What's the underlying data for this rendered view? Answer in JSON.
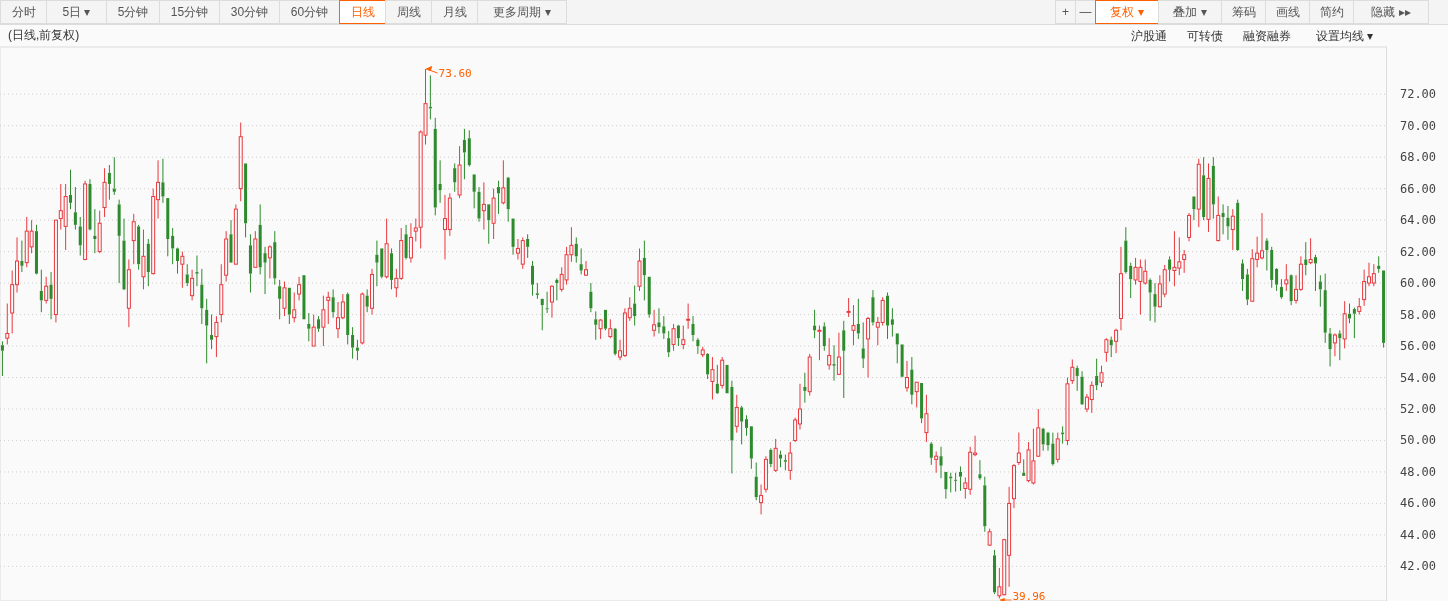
{
  "chart_data": {
    "type": "candlestick",
    "title": "(日线,前复权)",
    "annotations": [
      "分时",
      "5日 ▾",
      "5分钟",
      "15分钟",
      "30分钟",
      "60分钟",
      "日线",
      "周线",
      "月线",
      "更多周期 ▾",
      "+",
      "—",
      "复权 ▾",
      "叠加 ▾",
      "筹码",
      "画线",
      "简约",
      "隐藏 ▸▸",
      "沪股通",
      "可转债",
      "融资融券",
      "设置均线 ▾",
      "73.60",
      "39.96"
    ],
    "ylim": [
      39.8,
      75.0
    ],
    "yticks": [
      {
        "value": 42,
        "label": "42.00"
      },
      {
        "value": 44,
        "label": "44.00"
      },
      {
        "value": 46,
        "label": "46.00"
      },
      {
        "value": 48,
        "label": "48.00"
      },
      {
        "value": 50,
        "label": "50.00"
      },
      {
        "value": 52,
        "label": "52.00"
      },
      {
        "value": 54,
        "label": "54.00"
      },
      {
        "value": 56,
        "label": "56.00"
      },
      {
        "value": 58,
        "label": "58.00"
      },
      {
        "value": 60,
        "label": "60.00"
      },
      {
        "value": 62,
        "label": "62.00"
      },
      {
        "value": 64,
        "label": "64.00"
      },
      {
        "value": 66,
        "label": "66.00"
      },
      {
        "value": 68,
        "label": "68.00"
      },
      {
        "value": 70,
        "label": "70.00"
      },
      {
        "value": 72,
        "label": "72.00"
      }
    ],
    "grid": "y",
    "tick_labels": "y",
    "categories": [
      null,
      null,
      null,
      null,
      null,
      null,
      null,
      null,
      null,
      null,
      null,
      null,
      null,
      null,
      null,
      null,
      null,
      null,
      null,
      null,
      null,
      null,
      null,
      null,
      null,
      null,
      null,
      null,
      null,
      null,
      null,
      null,
      null,
      null,
      null,
      null,
      null,
      null,
      null,
      null,
      null,
      null,
      null,
      null,
      null,
      null,
      null,
      null,
      null,
      null,
      null,
      null,
      null,
      null,
      null,
      null,
      null,
      null,
      null,
      null,
      null,
      null,
      null,
      null,
      null,
      null,
      null,
      null,
      null,
      null,
      null,
      null,
      null,
      null,
      null,
      null,
      null,
      null,
      null,
      null,
      null,
      null,
      null,
      null,
      null,
      null,
      null,
      null,
      null,
      null,
      null,
      null,
      null,
      null,
      null,
      null,
      null,
      null,
      null,
      null,
      null,
      null,
      null,
      null,
      null,
      null,
      null,
      null,
      null,
      null,
      null,
      null,
      null,
      null,
      null,
      null,
      null,
      null,
      null,
      null,
      null,
      null,
      null,
      null,
      null,
      null,
      null,
      null,
      null,
      null,
      null,
      null,
      null,
      null,
      null,
      null,
      null,
      null,
      null,
      null,
      null,
      null,
      null,
      null,
      null,
      null,
      null,
      null,
      null,
      null,
      null,
      null,
      null,
      null,
      null,
      null,
      null,
      null,
      null,
      null,
      null,
      null,
      null,
      null,
      null,
      null,
      null,
      null,
      null,
      null,
      null,
      null,
      null,
      null,
      null,
      null,
      null,
      null,
      null,
      null,
      null,
      null,
      null,
      null,
      null,
      null,
      null,
      null,
      null,
      null,
      null,
      null,
      null,
      null,
      null,
      null,
      null,
      null,
      null,
      null,
      null,
      null,
      null,
      null,
      null,
      null,
      null,
      null,
      null,
      null,
      null,
      null,
      null,
      null,
      null,
      null,
      null,
      null,
      null,
      null,
      null,
      null,
      null,
      null,
      null,
      null,
      null,
      null,
      null,
      null,
      null,
      null,
      null,
      null,
      null,
      null,
      null,
      null,
      null,
      null,
      null,
      null,
      null,
      null,
      null,
      null,
      null,
      null,
      null,
      null,
      null,
      null,
      null,
      null,
      null,
      null,
      null,
      null,
      null,
      null,
      null,
      null,
      null,
      null,
      null,
      null,
      null,
      null,
      null,
      null,
      null,
      null,
      null,
      null,
      null,
      null,
      null,
      null,
      null,
      null,
      null,
      null,
      null,
      null,
      null
    ],
    "ohlc": [
      [
        56.05,
        56.3,
        54.1,
        55.7
      ],
      [
        56.5,
        58.7,
        56.1,
        56.8
      ],
      [
        58.1,
        60.8,
        56.8,
        59.9
      ],
      [
        59.9,
        62.9,
        59.4,
        61.4
      ],
      [
        61.4,
        62.7,
        60.7,
        61.1
      ],
      [
        61.3,
        64.2,
        61.0,
        63.3
      ],
      [
        62.3,
        64.0,
        61.9,
        63.3
      ],
      [
        63.3,
        63.7,
        60.55,
        60.6
      ],
      [
        59.5,
        60.85,
        58.15,
        58.9
      ],
      [
        58.9,
        60.4,
        58.7,
        59.8
      ],
      [
        59.9,
        60.7,
        57.7,
        59.0
      ],
      [
        58.0,
        64.0,
        57.5,
        64.0
      ],
      [
        64.1,
        66.3,
        63.4,
        64.6
      ],
      [
        63.6,
        66.3,
        62.1,
        65.5
      ],
      [
        65.6,
        67.2,
        64.7,
        65.1
      ],
      [
        64.5,
        66.1,
        63.4,
        63.7
      ],
      [
        63.6,
        64.2,
        61.75,
        62.4
      ],
      [
        61.5,
        66.5,
        61.45,
        66.3
      ],
      [
        66.3,
        66.6,
        63.35,
        63.4
      ],
      [
        63.0,
        64.7,
        61.9,
        62.8
      ],
      [
        62.0,
        64.6,
        61.9,
        63.8
      ],
      [
        64.8,
        67.3,
        64.2,
        66.4
      ],
      [
        67.0,
        67.5,
        65.3,
        66.3
      ],
      [
        66.0,
        68.0,
        65.6,
        65.8
      ],
      [
        65.0,
        65.3,
        60.0,
        63.0
      ],
      [
        62.7,
        64.1,
        59.55,
        59.6
      ],
      [
        58.4,
        61.5,
        57.2,
        60.85
      ],
      [
        62.7,
        64.4,
        61.2,
        63.9
      ],
      [
        63.6,
        63.7,
        60.85,
        61.2
      ],
      [
        60.4,
        63.4,
        59.6,
        61.7
      ],
      [
        62.5,
        62.8,
        59.8,
        60.7
      ],
      [
        60.6,
        66.0,
        60.55,
        65.5
      ],
      [
        65.3,
        67.8,
        64.1,
        66.4
      ],
      [
        66.4,
        67.9,
        65.1,
        65.5
      ],
      [
        65.4,
        65.4,
        61.7,
        62.8
      ],
      [
        63.0,
        63.5,
        61.2,
        62.2
      ],
      [
        62.2,
        62.25,
        60.6,
        61.4
      ],
      [
        61.2,
        62.0,
        59.7,
        61.7
      ],
      [
        60.55,
        61.2,
        59.8,
        60.0
      ],
      [
        59.2,
        60.85,
        58.9,
        60.3
      ],
      [
        60.7,
        61.75,
        59.8,
        60.6
      ],
      [
        59.9,
        60.9,
        57.4,
        58.4
      ],
      [
        58.3,
        59.0,
        54.9,
        57.3
      ],
      [
        56.7,
        58.0,
        55.8,
        56.4
      ],
      [
        56.6,
        57.9,
        55.3,
        57.5
      ],
      [
        58.0,
        61.2,
        57.5,
        59.9
      ],
      [
        60.5,
        63.3,
        60.1,
        62.8
      ],
      [
        63.1,
        64.0,
        61.3,
        61.3
      ],
      [
        61.2,
        65.0,
        61.2,
        64.7
      ],
      [
        66.0,
        70.2,
        65.2,
        69.3
      ],
      [
        67.6,
        67.6,
        62.9,
        63.8
      ],
      [
        62.4,
        63.1,
        59.4,
        60.6
      ],
      [
        61.0,
        63.3,
        61.0,
        62.8
      ],
      [
        63.7,
        65.0,
        60.55,
        61.0
      ],
      [
        61.9,
        62.3,
        59.3,
        61.3
      ],
      [
        61.6,
        62.4,
        60.3,
        62.3
      ],
      [
        62.6,
        63.3,
        59.9,
        60.3
      ],
      [
        59.8,
        60.2,
        57.7,
        59.0
      ],
      [
        58.4,
        60.1,
        57.9,
        59.7
      ],
      [
        59.7,
        59.7,
        57.4,
        58.0
      ],
      [
        57.8,
        59.4,
        57.5,
        58.3
      ],
      [
        59.3,
        60.4,
        58.9,
        59.9
      ],
      [
        60.5,
        60.5,
        57.7,
        57.7
      ],
      [
        57.4,
        58.1,
        56.3,
        57.1
      ],
      [
        56.0,
        58.0,
        56.0,
        57.2
      ],
      [
        57.7,
        57.9,
        56.9,
        57.1
      ],
      [
        57.2,
        59.2,
        56.0,
        58.3
      ],
      [
        58.9,
        59.45,
        57.4,
        59.1
      ],
      [
        59.1,
        59.6,
        57.8,
        58.15
      ],
      [
        57.1,
        58.8,
        56.5,
        57.8
      ],
      [
        57.8,
        59.3,
        57.7,
        58.8
      ],
      [
        59.3,
        59.4,
        56.1,
        56.7
      ],
      [
        56.7,
        57.2,
        55.2,
        55.9
      ],
      [
        55.9,
        56.4,
        55.1,
        55.7
      ],
      [
        56.2,
        59.4,
        56.1,
        59.3
      ],
      [
        59.2,
        59.6,
        58.15,
        58.5
      ],
      [
        58.4,
        60.9,
        58.0,
        60.55
      ],
      [
        61.8,
        62.7,
        59.8,
        61.3
      ],
      [
        62.2,
        62.2,
        60.3,
        60.4
      ],
      [
        60.4,
        64.1,
        60.3,
        62.5
      ],
      [
        61.9,
        62.2,
        59.6,
        60.2
      ],
      [
        59.7,
        60.9,
        59.1,
        60.3
      ],
      [
        60.3,
        63.5,
        60.2,
        62.7
      ],
      [
        63.1,
        63.7,
        61.5,
        61.6
      ],
      [
        61.6,
        63.8,
        61.3,
        62.9
      ],
      [
        63.3,
        64.1,
        62.65,
        63.5
      ],
      [
        63.55,
        69.7,
        62.2,
        69.6
      ],
      [
        69.4,
        73.6,
        68.8,
        71.4
      ],
      [
        71.2,
        73.2,
        70.4,
        71.1
      ],
      [
        69.8,
        70.5,
        64.3,
        64.8
      ],
      [
        66.3,
        67.8,
        65.1,
        65.9
      ],
      [
        63.4,
        65.6,
        61.5,
        64.1
      ],
      [
        63.4,
        65.7,
        63.0,
        65.4
      ],
      [
        67.3,
        67.6,
        65.8,
        66.4
      ],
      [
        65.6,
        68.7,
        65.4,
        67.5
      ],
      [
        69.1,
        69.8,
        66.6,
        68.3
      ],
      [
        69.2,
        69.7,
        67.4,
        67.5
      ],
      [
        66.9,
        66.9,
        64.75,
        65.8
      ],
      [
        65.8,
        66.1,
        63.9,
        64.1
      ],
      [
        64.6,
        66.4,
        63.4,
        65.0
      ],
      [
        65.0,
        65.0,
        62.5,
        64.0
      ],
      [
        63.8,
        66.0,
        62.8,
        65.4
      ],
      [
        66.1,
        66.5,
        64.4,
        65.7
      ],
      [
        65.1,
        67.8,
        65.0,
        66.05
      ],
      [
        66.7,
        66.75,
        63.9,
        64.7
      ],
      [
        64.1,
        64.1,
        61.8,
        62.3
      ],
      [
        61.9,
        62.8,
        61.5,
        62.2
      ],
      [
        61.2,
        62.9,
        60.9,
        62.7
      ],
      [
        62.8,
        63.1,
        61.6,
        62.3
      ],
      [
        61.1,
        61.4,
        59.2,
        59.9
      ],
      [
        59.35,
        60.0,
        59.0,
        59.25
      ],
      [
        59.0,
        59.0,
        57.0,
        58.6
      ],
      [
        58.4,
        59.45,
        58.1,
        58.35
      ],
      [
        58.8,
        59.85,
        57.8,
        59.8
      ],
      [
        60.2,
        60.3,
        58.9,
        60.0
      ],
      [
        59.6,
        61.0,
        59.45,
        60.55
      ],
      [
        60.2,
        62.3,
        59.9,
        61.8
      ],
      [
        61.8,
        63.55,
        61.35,
        62.4
      ],
      [
        62.5,
        62.9,
        61.3,
        61.7
      ],
      [
        61.2,
        62.2,
        60.55,
        60.8
      ],
      [
        60.5,
        61.4,
        60.45,
        60.85
      ],
      [
        59.45,
        60.0,
        58.15,
        58.4
      ],
      [
        57.7,
        58.2,
        56.4,
        57.35
      ],
      [
        57.1,
        57.7,
        56.45,
        57.65
      ],
      [
        58.3,
        58.3,
        57.0,
        57.1
      ],
      [
        56.6,
        57.7,
        56.5,
        57.1
      ],
      [
        57.1,
        57.15,
        55.4,
        55.5
      ],
      [
        55.3,
        56.4,
        55.1,
        55.7
      ],
      [
        55.4,
        58.4,
        55.3,
        58.1
      ],
      [
        57.8,
        59.1,
        57.6,
        58.4
      ],
      [
        58.7,
        59.85,
        57.3,
        57.9
      ],
      [
        59.8,
        62.2,
        59.5,
        61.4
      ],
      [
        61.6,
        62.7,
        58.9,
        60.5
      ],
      [
        60.4,
        60.4,
        57.8,
        58.0
      ],
      [
        57.0,
        58.3,
        56.6,
        57.35
      ],
      [
        57.5,
        58.4,
        56.8,
        57.2
      ],
      [
        57.25,
        57.9,
        56.45,
        56.8
      ],
      [
        56.5,
        56.95,
        55.3,
        55.6
      ],
      [
        56.1,
        57.4,
        55.7,
        57.1
      ],
      [
        57.3,
        57.35,
        56.0,
        56.5
      ],
      [
        56.1,
        57.3,
        55.8,
        56.4
      ],
      [
        57.65,
        58.7,
        57.1,
        57.7
      ],
      [
        57.4,
        57.9,
        56.3,
        56.7
      ],
      [
        56.4,
        56.5,
        55.5,
        56.0
      ],
      [
        55.45,
        55.95,
        55.3,
        55.75
      ],
      [
        55.5,
        55.55,
        53.9,
        54.2
      ],
      [
        53.75,
        55.3,
        52.6,
        54.5
      ],
      [
        53.6,
        54.8,
        52.95,
        53.0
      ],
      [
        53.5,
        55.3,
        53.3,
        55.1
      ],
      [
        54.8,
        54.8,
        53.0,
        53.0
      ],
      [
        53.4,
        53.8,
        47.9,
        50.0
      ],
      [
        50.9,
        52.9,
        50.5,
        52.1
      ],
      [
        52.1,
        52.2,
        49.75,
        51.2
      ],
      [
        51.35,
        51.6,
        50.3,
        50.8
      ],
      [
        50.9,
        50.9,
        48.2,
        48.85
      ],
      [
        47.7,
        48.6,
        46.2,
        46.4
      ],
      [
        46.05,
        47.2,
        45.3,
        46.5
      ],
      [
        46.9,
        49.0,
        46.7,
        48.8
      ],
      [
        49.4,
        49.5,
        48.3,
        48.5
      ],
      [
        48.1,
        50.1,
        48.0,
        49.5
      ],
      [
        49.1,
        49.35,
        48.3,
        48.85
      ],
      [
        48.75,
        49.1,
        48.1,
        48.65
      ],
      [
        48.1,
        49.9,
        47.5,
        49.2
      ],
      [
        50.0,
        51.45,
        49.9,
        51.3
      ],
      [
        51.05,
        53.6,
        50.7,
        52.0
      ],
      [
        53.4,
        54.3,
        52.4,
        53.15
      ],
      [
        53.1,
        55.5,
        52.85,
        55.3
      ],
      [
        57.3,
        58.3,
        56.5,
        57.0
      ],
      [
        56.98,
        57.3,
        55.1,
        57.0
      ],
      [
        57.25,
        57.5,
        55.7,
        56.0
      ],
      [
        54.8,
        56.5,
        54.5,
        55.4
      ],
      [
        54.85,
        56.05,
        53.8,
        54.75
      ],
      [
        54.2,
        56.85,
        54.15,
        55.3
      ],
      [
        57.0,
        57.6,
        52.7,
        55.7
      ],
      [
        58.15,
        59.05,
        57.85,
        58.2
      ],
      [
        57.0,
        58.6,
        56.05,
        57.3
      ],
      [
        57.4,
        59.0,
        56.45,
        56.8
      ],
      [
        55.85,
        57.5,
        54.6,
        55.2
      ],
      [
        56.45,
        57.85,
        54.0,
        57.75
      ],
      [
        59.1,
        59.55,
        57.3,
        57.5
      ],
      [
        57.2,
        57.85,
        56.05,
        57.5
      ],
      [
        57.5,
        59.1,
        57.3,
        58.9
      ],
      [
        59.2,
        59.4,
        56.45,
        57.3
      ],
      [
        57.7,
        58.4,
        56.6,
        57.35
      ],
      [
        56.8,
        56.8,
        54.9,
        56.1
      ],
      [
        56.1,
        56.1,
        54.0,
        54.05
      ],
      [
        53.35,
        55.05,
        53.1,
        54.0
      ],
      [
        54.5,
        55.3,
        52.3,
        52.9
      ],
      [
        53.1,
        53.7,
        52.1,
        53.7
      ],
      [
        53.65,
        53.65,
        51.1,
        51.4
      ],
      [
        50.5,
        52.9,
        49.9,
        51.7
      ],
      [
        49.8,
        49.9,
        48.45,
        48.9
      ],
      [
        48.8,
        49.3,
        47.95,
        49.0
      ],
      [
        49.0,
        49.6,
        47.6,
        48.4
      ],
      [
        48.0,
        48.0,
        46.3,
        46.9
      ],
      [
        47.7,
        47.95,
        46.7,
        47.6
      ],
      [
        47.5,
        47.95,
        46.75,
        47.45
      ],
      [
        48.0,
        48.35,
        46.8,
        47.7
      ],
      [
        46.95,
        47.65,
        46.3,
        47.3
      ],
      [
        46.9,
        49.6,
        46.55,
        49.25
      ],
      [
        49.1,
        50.3,
        49.0,
        49.2
      ],
      [
        47.85,
        48.75,
        47.5,
        47.6
      ],
      [
        47.15,
        47.7,
        44.2,
        44.55
      ],
      [
        43.35,
        44.4,
        43.3,
        44.2
      ],
      [
        42.7,
        43.05,
        40.24,
        40.35
      ],
      [
        40.13,
        41.9,
        39.96,
        40.7
      ],
      [
        40.2,
        43.75,
        40.15,
        43.7
      ],
      [
        42.7,
        47.05,
        40.7,
        46.0
      ],
      [
        46.3,
        48.5,
        45.7,
        48.4
      ],
      [
        48.6,
        50.5,
        48.45,
        49.2
      ],
      [
        47.95,
        48.8,
        47.75,
        47.75
      ],
      [
        47.45,
        49.9,
        47.35,
        49.4
      ],
      [
        47.3,
        50.75,
        47.2,
        48.7
      ],
      [
        49.0,
        52.0,
        48.95,
        50.8
      ],
      [
        50.75,
        50.8,
        49.35,
        49.75
      ],
      [
        50.5,
        50.55,
        49.35,
        49.7
      ],
      [
        49.8,
        50.5,
        48.4,
        48.5
      ],
      [
        48.8,
        50.5,
        48.6,
        50.1
      ],
      [
        50.5,
        50.9,
        49.8,
        50.4
      ],
      [
        50.0,
        54.0,
        49.7,
        53.6
      ],
      [
        53.8,
        55.15,
        53.6,
        54.65
      ],
      [
        54.6,
        54.75,
        53.15,
        54.1
      ],
      [
        54.05,
        54.4,
        52.25,
        52.3
      ],
      [
        52.0,
        52.95,
        51.8,
        52.75
      ],
      [
        52.6,
        53.75,
        51.75,
        53.5
      ],
      [
        54.1,
        55.2,
        53.2,
        53.5
      ],
      [
        53.7,
        54.75,
        53.4,
        54.3
      ],
      [
        55.6,
        56.5,
        55.0,
        56.4
      ],
      [
        56.4,
        56.6,
        55.3,
        56.05
      ],
      [
        56.3,
        57.1,
        55.55,
        57.0
      ],
      [
        57.75,
        62.3,
        57.0,
        60.6
      ],
      [
        62.7,
        63.55,
        60.6,
        60.7
      ],
      [
        61.1,
        61.3,
        59.05,
        60.25
      ],
      [
        60.2,
        61.6,
        59.9,
        61.0
      ],
      [
        60.1,
        61.5,
        58.0,
        61.0
      ],
      [
        60.0,
        61.5,
        59.9,
        60.75
      ],
      [
        60.2,
        60.3,
        57.6,
        59.4
      ],
      [
        59.3,
        60.0,
        57.5,
        58.5
      ],
      [
        58.5,
        60.5,
        58.45,
        59.95
      ],
      [
        59.3,
        61.15,
        59.1,
        60.85
      ],
      [
        61.5,
        61.7,
        60.1,
        60.85
      ],
      [
        60.8,
        63.3,
        59.8,
        61.0
      ],
      [
        60.95,
        62.9,
        60.5,
        61.35
      ],
      [
        61.5,
        62.1,
        60.65,
        61.8
      ],
      [
        62.9,
        64.45,
        62.65,
        64.3
      ],
      [
        65.5,
        65.5,
        64.0,
        64.7
      ],
      [
        64.7,
        67.9,
        63.55,
        67.55
      ],
      [
        66.85,
        68.0,
        64.0,
        64.2
      ],
      [
        64.05,
        67.6,
        63.25,
        66.65
      ],
      [
        67.45,
        68.0,
        64.1,
        65.0
      ],
      [
        62.7,
        65.5,
        62.65,
        64.3
      ],
      [
        64.45,
        65.0,
        63.1,
        64.2
      ],
      [
        64.15,
        64.9,
        62.75,
        63.6
      ],
      [
        63.4,
        64.7,
        62.1,
        64.25
      ],
      [
        65.1,
        65.3,
        62.05,
        62.1
      ],
      [
        61.25,
        61.5,
        59.5,
        60.25
      ],
      [
        60.55,
        60.9,
        58.6,
        58.95
      ],
      [
        58.85,
        62.15,
        58.8,
        61.55
      ],
      [
        61.5,
        62.95,
        61.0,
        61.9
      ],
      [
        61.6,
        64.45,
        61.5,
        62.05
      ],
      [
        62.7,
        62.85,
        60.8,
        62.1
      ],
      [
        62.1,
        62.3,
        59.7,
        60.2
      ],
      [
        60.9,
        60.95,
        59.5,
        59.9
      ],
      [
        59.75,
        60.25,
        59.0,
        59.1
      ],
      [
        59.95,
        61.2,
        59.5,
        60.2
      ],
      [
        60.5,
        60.55,
        58.6,
        58.85
      ],
      [
        58.9,
        60.5,
        58.7,
        59.6
      ],
      [
        59.6,
        61.7,
        59.5,
        61.2
      ],
      [
        61.5,
        62.6,
        60.5,
        61.15
      ],
      [
        61.3,
        62.85,
        61.2,
        61.5
      ],
      [
        61.65,
        61.8,
        59.5,
        61.25
      ],
      [
        60.1,
        60.5,
        58.5,
        59.6
      ],
      [
        59.55,
        60.6,
        56.2,
        56.85
      ],
      [
        56.8,
        57.15,
        54.7,
        55.8
      ],
      [
        56.2,
        56.8,
        55.35,
        56.7
      ],
      [
        56.8,
        57.0,
        55.1,
        56.5
      ],
      [
        56.45,
        58.85,
        55.85,
        58.05
      ],
      [
        58.05,
        58.7,
        57.45,
        57.75
      ],
      [
        58.35,
        58.45,
        56.5,
        58.05
      ],
      [
        58.2,
        59.05,
        58.0,
        58.5
      ],
      [
        58.95,
        60.85,
        58.55,
        60.1
      ],
      [
        60.0,
        61.3,
        59.8,
        60.4
      ],
      [
        60.0,
        61.2,
        59.8,
        60.6
      ],
      [
        61.1,
        61.7,
        60.65,
        60.9
      ],
      [
        60.8,
        60.8,
        55.9,
        56.2
      ]
    ]
  }
}
